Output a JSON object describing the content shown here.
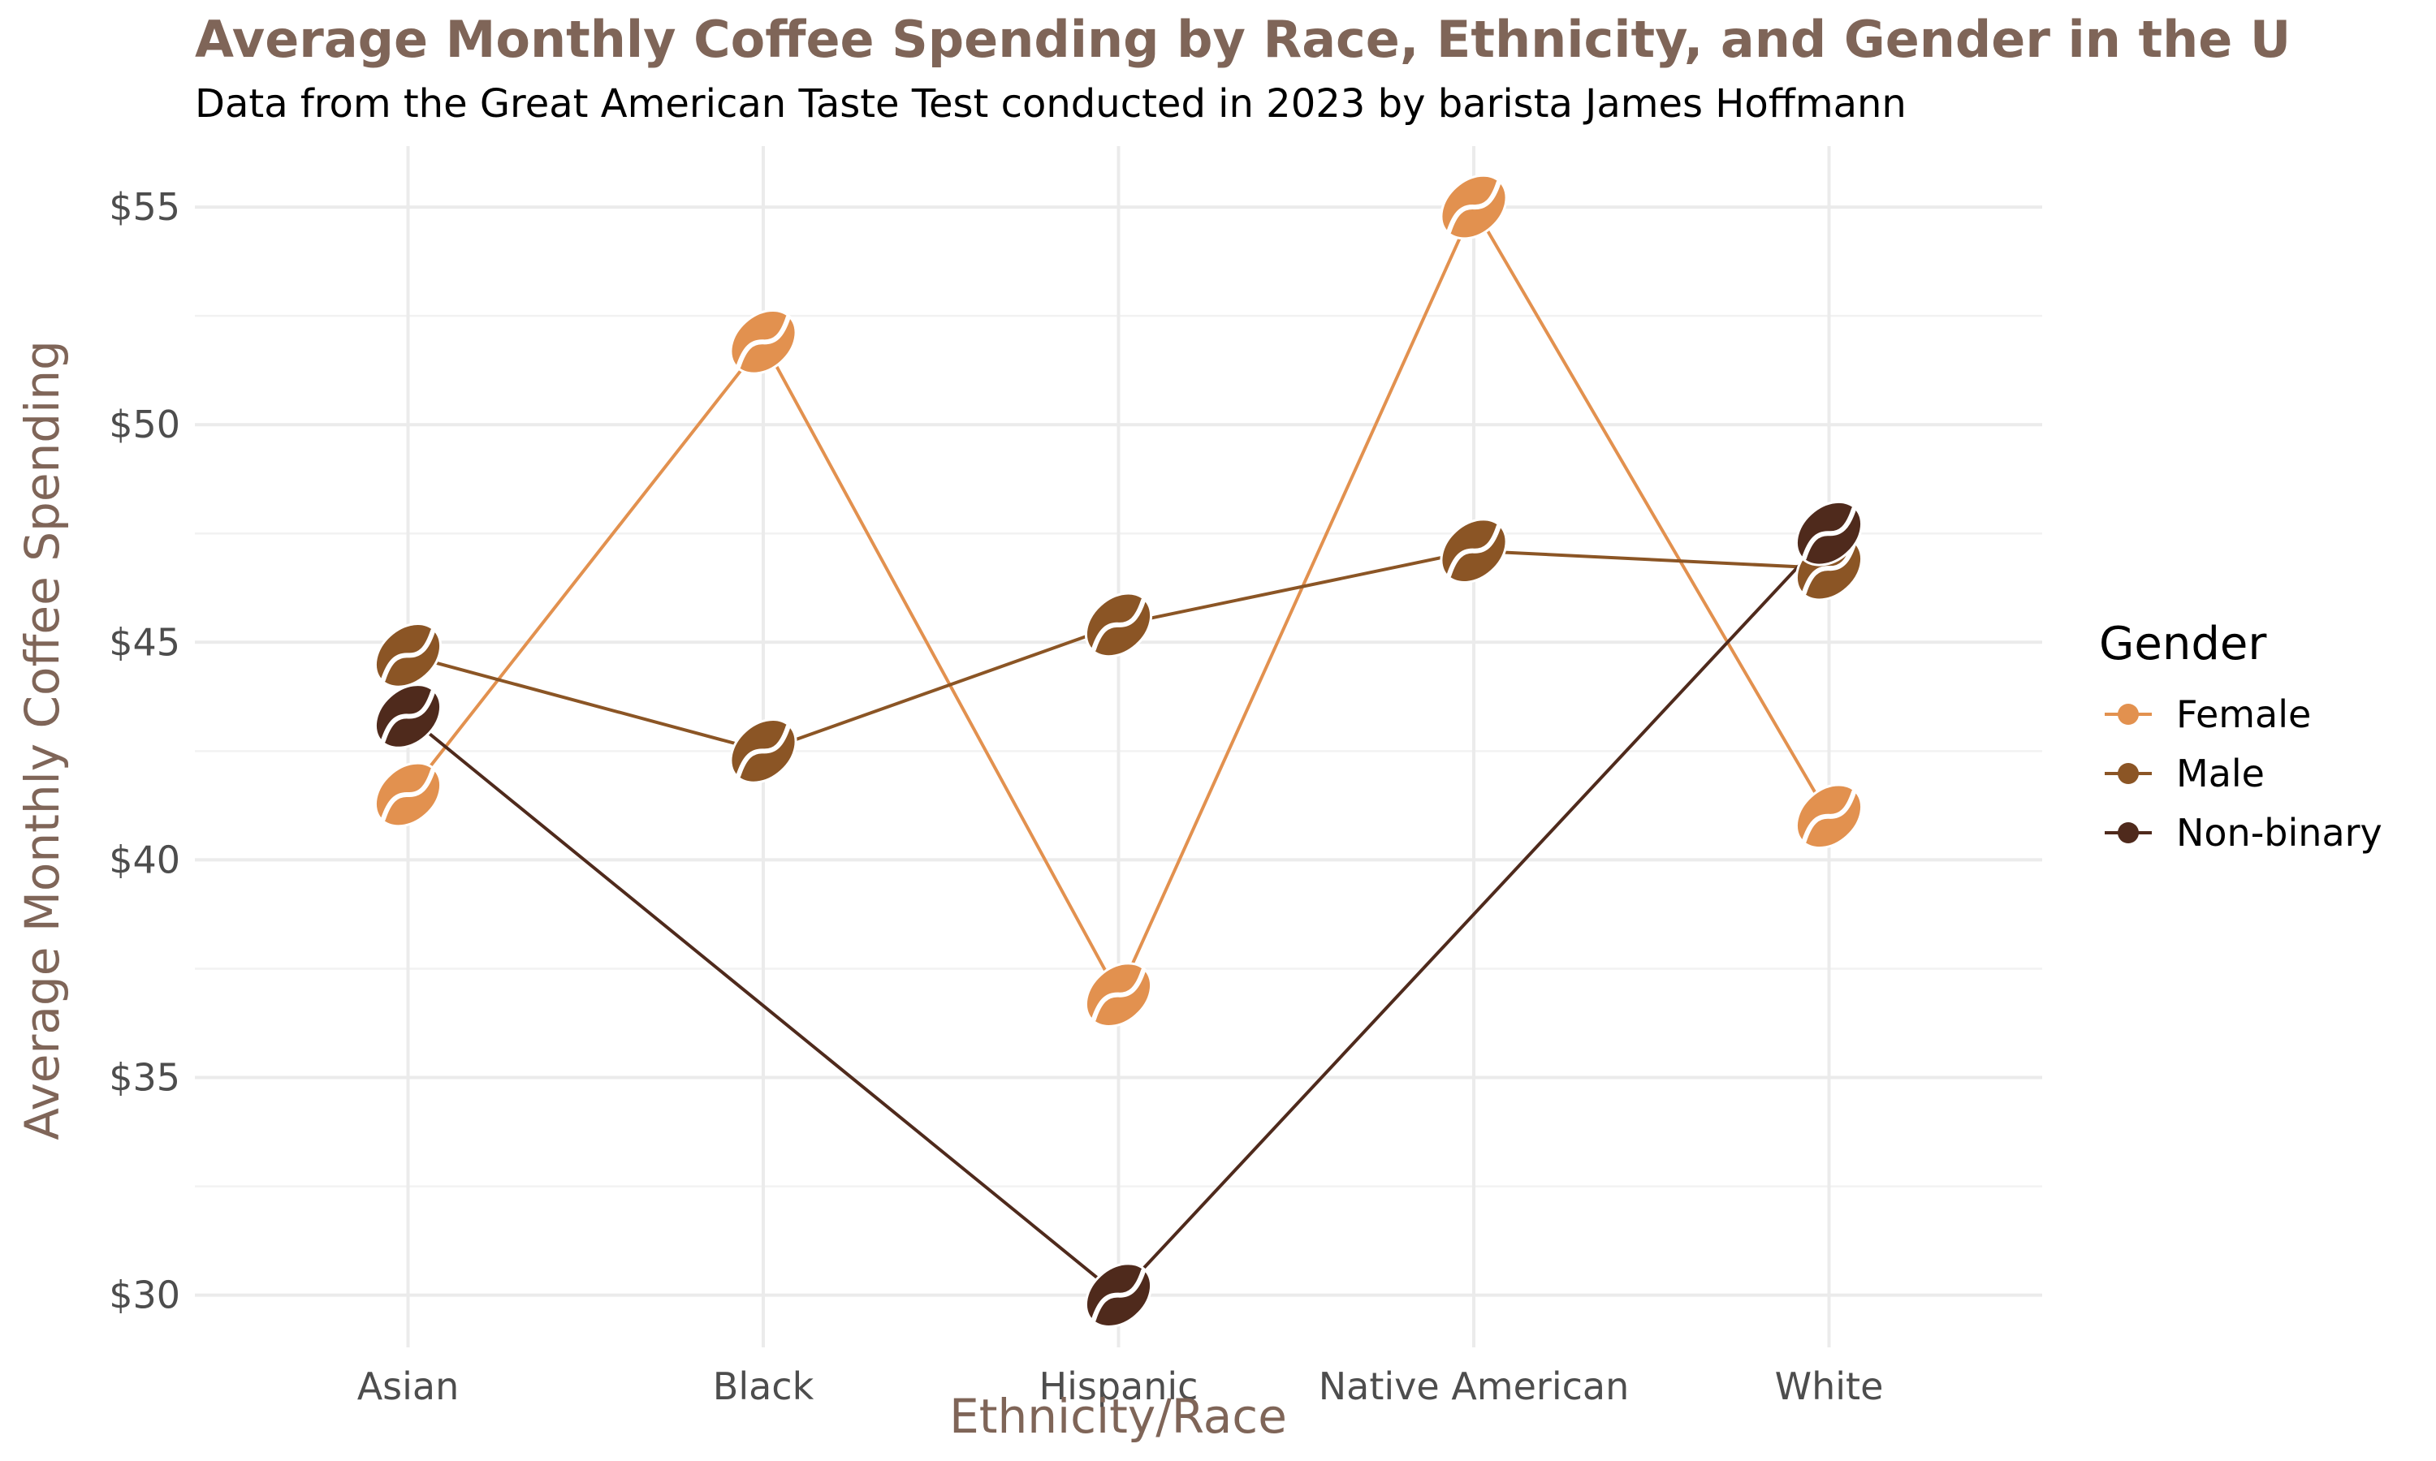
{
  "chart_data": {
    "type": "line",
    "title": "Average Monthly Coffee Spending by Race, Ethnicity, and Gender in the U",
    "subtitle": "Data from the Great American Taste Test conducted in 2023 by barista James Hoffmann",
    "xlabel": "Ethnicity/Race",
    "ylabel": "Average Monthly Coffee Spending",
    "categories": [
      "Asian",
      "Black",
      "Hispanic",
      "Native American",
      "White"
    ],
    "ylim": [
      28.8,
      56.4
    ],
    "yticks": [
      30,
      35,
      40,
      45,
      50,
      55
    ],
    "ytick_labels": [
      "$30",
      "$35",
      "$40",
      "$45",
      "$50",
      "$55"
    ],
    "grid": true,
    "marker": "coffee-bean",
    "legend": {
      "title": "Gender",
      "position": "right"
    },
    "series": [
      {
        "name": "Female",
        "color": "#e2914f",
        "values": [
          41.5,
          51.9,
          36.9,
          55.0,
          41.0
        ]
      },
      {
        "name": "Male",
        "color": "#8b5525",
        "values": [
          44.7,
          42.5,
          45.4,
          47.1,
          46.7
        ]
      },
      {
        "name": "Non-binary",
        "color": "#4f2a1c",
        "values": [
          43.3,
          null,
          30.0,
          null,
          47.5
        ]
      }
    ]
  }
}
